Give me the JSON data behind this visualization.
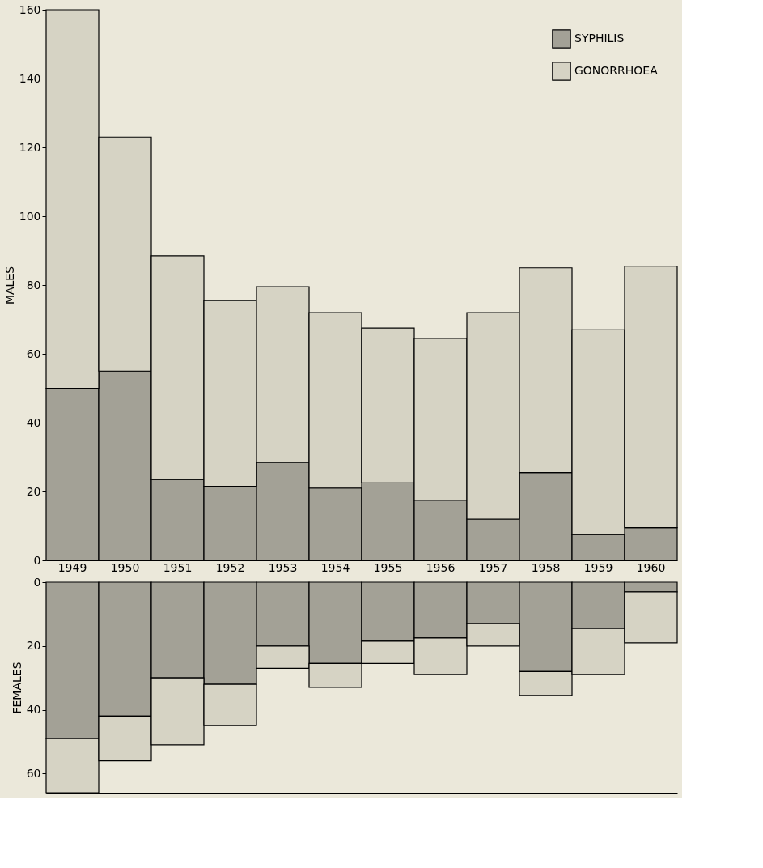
{
  "chart_data": [
    {
      "type": "bar",
      "ylabel": "MALES",
      "stacked": true,
      "legend": "top right",
      "grid": false,
      "categories": [
        "1949",
        "1950",
        "1951",
        "1952",
        "1953",
        "1954",
        "1955",
        "1956",
        "1957",
        "1958",
        "1959",
        "1960"
      ],
      "series": [
        {
          "name": "SYPHILIS",
          "color": "#a3a196",
          "values": [
            50,
            55,
            23.5,
            21.5,
            28.5,
            21,
            22.5,
            17.5,
            12,
            25.5,
            7.5,
            9.5
          ]
        },
        {
          "name": "GONORRHOEA",
          "color": "#d6d3c4",
          "values": [
            110,
            68,
            65,
            54,
            51,
            51,
            45,
            47,
            60,
            59.5,
            59.5,
            76
          ]
        }
      ],
      "ylim": [
        0,
        160
      ],
      "yticks": [
        0,
        20,
        40,
        60,
        80,
        100,
        120,
        140,
        160
      ]
    },
    {
      "type": "bar",
      "ylabel": "FEMALES",
      "stacked": true,
      "legend": false,
      "grid": false,
      "tick_labels": "y",
      "categories": [
        "1949",
        "1950",
        "1951",
        "1952",
        "1953",
        "1954",
        "1955",
        "1956",
        "1957",
        "1958",
        "1959",
        "1960"
      ],
      "series": [
        {
          "color": "#a3a196",
          "values": [
            49,
            42,
            30,
            32,
            20,
            25.5,
            18.5,
            17.5,
            13,
            28,
            14.5,
            3
          ]
        },
        {
          "color": "#d6d3c4",
          "values": [
            17,
            14,
            21,
            13,
            7,
            7.5,
            7,
            11.5,
            7,
            7.5,
            14.5,
            16
          ]
        }
      ],
      "ylim": [
        66,
        0
      ],
      "yticks": [
        0,
        20,
        40,
        60
      ]
    }
  ]
}
